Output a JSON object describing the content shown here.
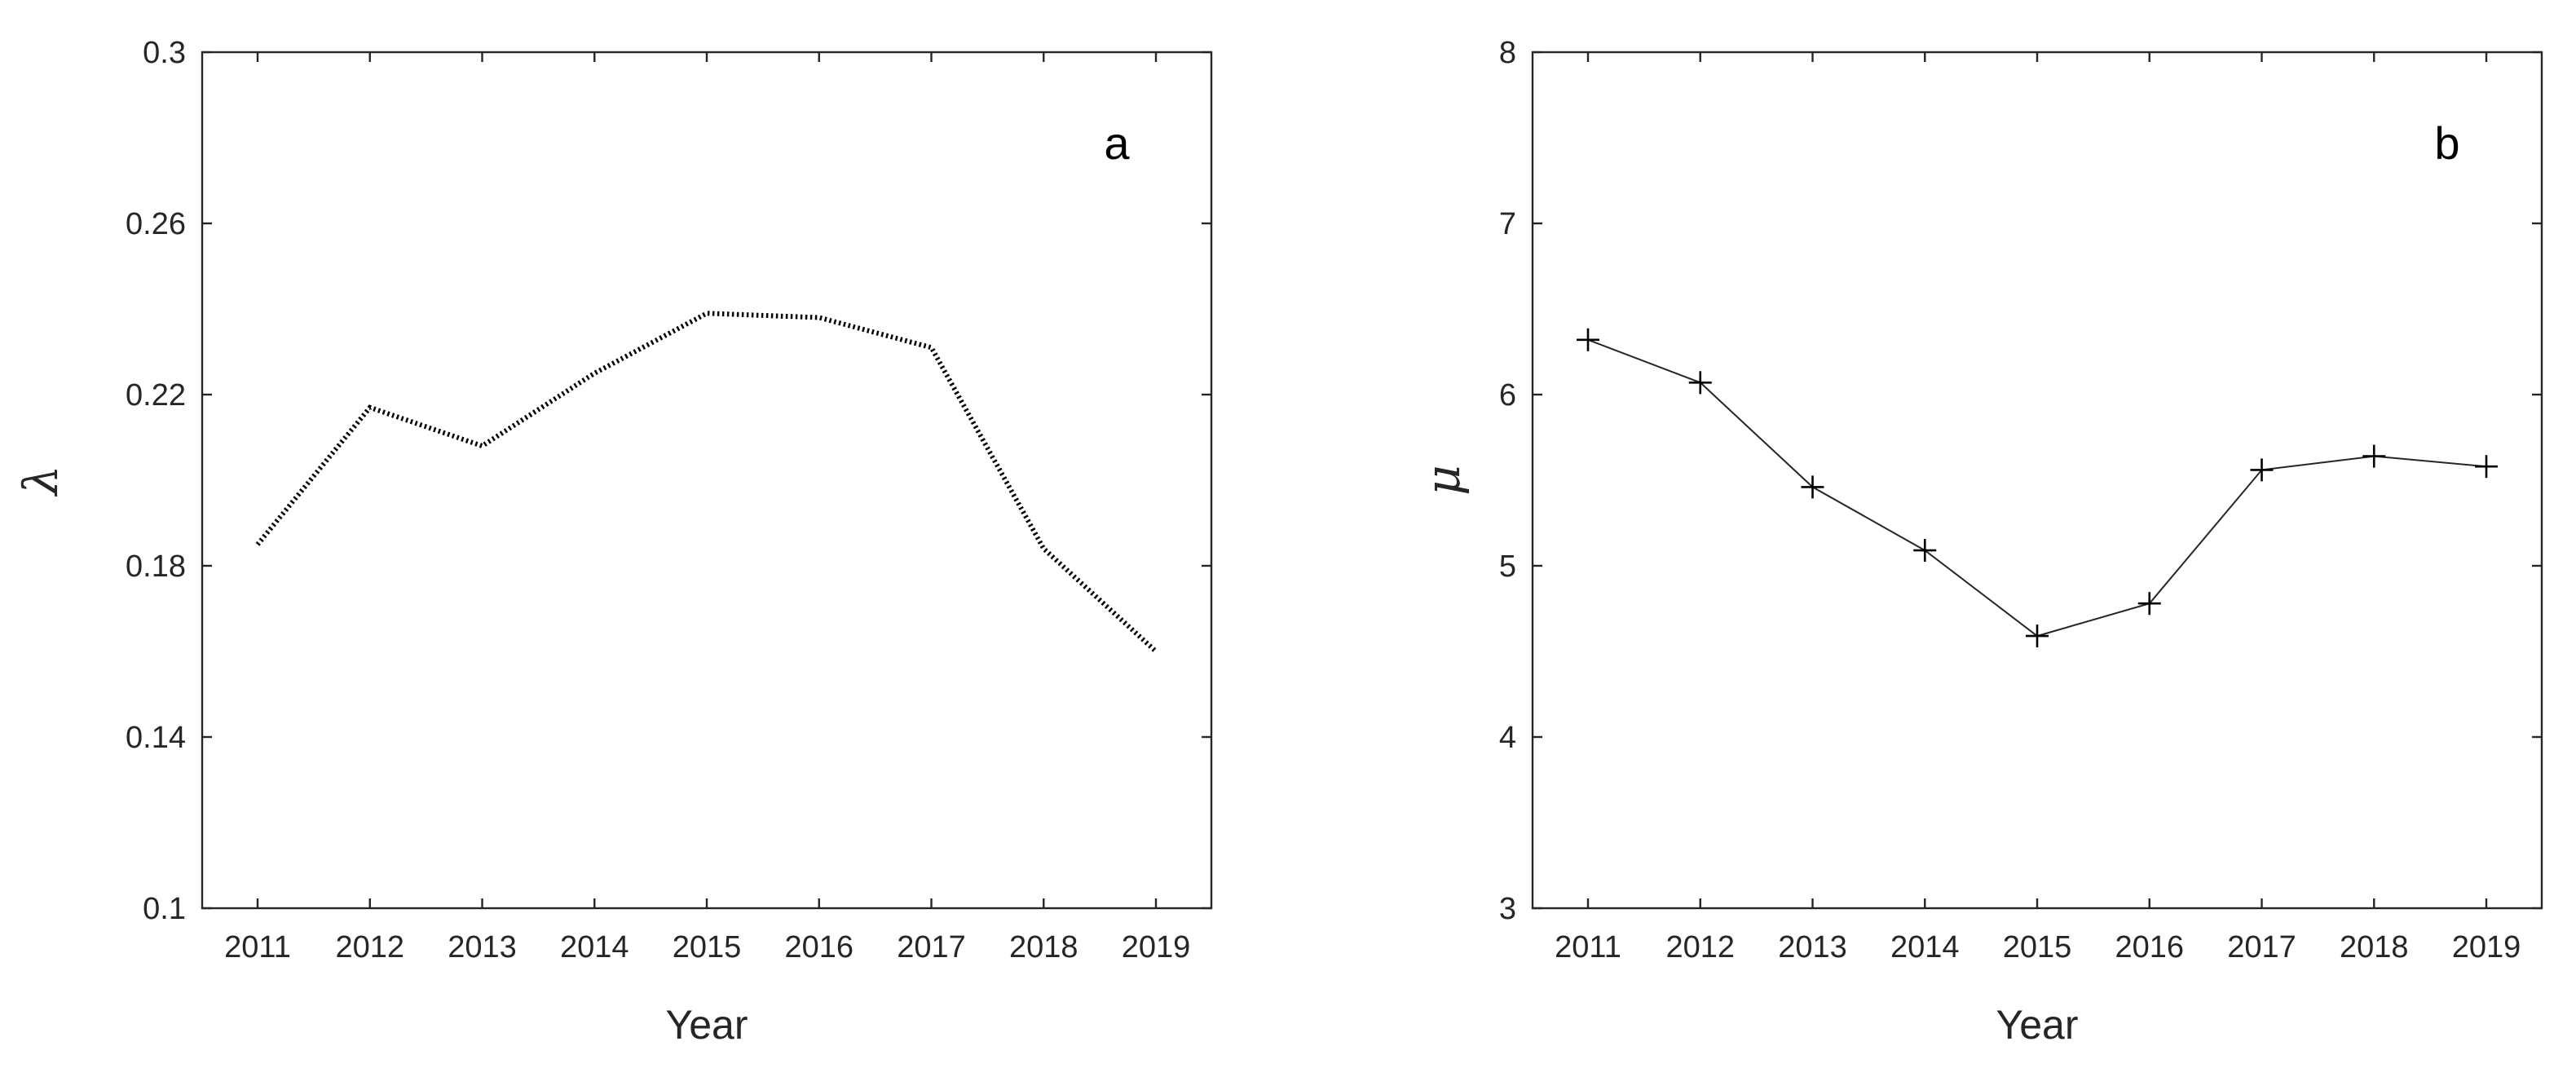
{
  "chart_data": [
    {
      "type": "line",
      "panel_label": "a",
      "xlabel": "Year",
      "ylabel": "λ",
      "x": [
        2011,
        2012,
        2013,
        2014,
        2015,
        2016,
        2017,
        2018,
        2019
      ],
      "series": [
        {
          "values": [
            0.185,
            0.217,
            0.208,
            0.225,
            0.239,
            0.238,
            0.231,
            0.184,
            0.16
          ],
          "line_style": "dotted",
          "color": "#000000"
        }
      ],
      "xticks": [
        "2011",
        "2012",
        "2013",
        "2014",
        "2015",
        "2016",
        "2017",
        "2018",
        "2019"
      ],
      "yticks": [
        "0.1",
        "0.14",
        "0.18",
        "0.22",
        "0.26",
        "0.3"
      ],
      "ylim": [
        0.1,
        0.3
      ],
      "grid": false
    },
    {
      "type": "line",
      "panel_label": "b",
      "xlabel": "Year",
      "ylabel": "μ",
      "x": [
        2011,
        2012,
        2013,
        2014,
        2015,
        2016,
        2017,
        2018,
        2019
      ],
      "series": [
        {
          "values": [
            6.32,
            6.07,
            5.46,
            5.09,
            4.59,
            4.78,
            5.56,
            5.64,
            5.58
          ],
          "line_style": "solid",
          "marker": "plus",
          "color": "#000000"
        }
      ],
      "xticks": [
        "2011",
        "2012",
        "2013",
        "2014",
        "2015",
        "2016",
        "2017",
        "2018",
        "2019"
      ],
      "yticks": [
        "3",
        "4",
        "5",
        "6",
        "7",
        "8"
      ],
      "ylim": [
        3,
        8
      ],
      "grid": false
    }
  ]
}
